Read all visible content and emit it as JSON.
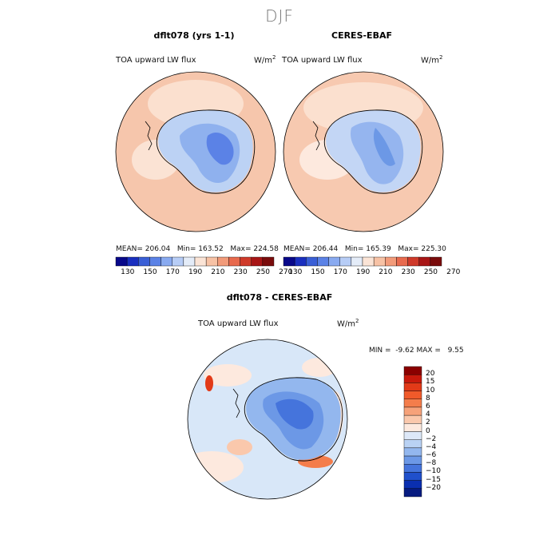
{
  "season": "DJF",
  "panels": [
    {
      "title": "dflt078 (yrs 1-1)",
      "variable": "TOA upward LW flux",
      "units": "W/m",
      "units_sup": "2",
      "mean_label": "MEAN=",
      "mean": "206.04",
      "min_label": "Min=",
      "min": "163.52",
      "max_label": "Max=",
      "max": "224.58"
    },
    {
      "title": "CERES-EBAF",
      "variable": "TOA upward LW flux",
      "units": "W/m",
      "units_sup": "2",
      "mean_label": "MEAN=",
      "mean": "206.44",
      "min_label": "Min=",
      "min": "165.39",
      "max_label": "Max=",
      "max": "225.30"
    }
  ],
  "colorbar_top": {
    "colors": [
      "#08088a",
      "#1a2fbf",
      "#3a5fd6",
      "#5b82e6",
      "#89aaf0",
      "#b7cdf6",
      "#e4ecf8",
      "#fbe4d6",
      "#f7c2a5",
      "#f29b7a",
      "#e86a4e",
      "#cf3a2a",
      "#a81616",
      "#7a0c0c"
    ],
    "labels": [
      "130",
      "150",
      "170",
      "190",
      "210",
      "230",
      "250",
      "270"
    ]
  },
  "diff_panel": {
    "title": "dflt078 - CERES-EBAF",
    "variable": "TOA upward LW flux",
    "units": "W/m",
    "units_sup": "2",
    "min_label": "MIN =",
    "min": "-9.62",
    "max_label": "MAX =",
    "max": "9.55"
  },
  "colorbar_diff": {
    "colors": [
      "#8b0000",
      "#c8190c",
      "#e23a18",
      "#f05a2a",
      "#f47d4b",
      "#f6a27a",
      "#fac8ac",
      "#fde9de",
      "#dde8f8",
      "#b9d2f4",
      "#93b7ee",
      "#6c98e6",
      "#4574dc",
      "#2050cc",
      "#0a2fb0",
      "#071b80"
    ],
    "labels": [
      "20",
      "15",
      "10",
      "8",
      "6",
      "4",
      "2",
      "0",
      "−2",
      "−4",
      "−6",
      "−8",
      "−10",
      "−15",
      "−20"
    ]
  },
  "colors": {
    "ocean_warm": "#f9d2bd",
    "ocean_light": "#fbe3d4",
    "diff_ocean": "#d8e7f8",
    "coast": "#000000"
  }
}
